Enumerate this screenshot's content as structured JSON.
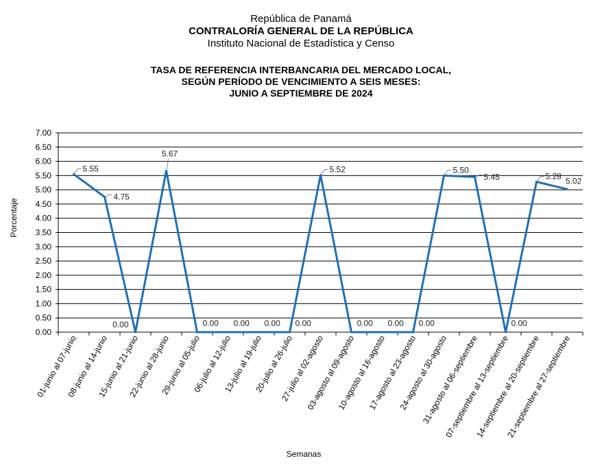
{
  "header": {
    "line1": "República de Panamá",
    "line2": "CONTRALORÍA GENERAL DE LA REPÚBLICA",
    "line3": "Instituto  Nacional de Estadística y Censo"
  },
  "chart_data": {
    "type": "line",
    "title": [
      "TASA DE REFERENCIA INTERBANCARIA DEL MERCADO LOCAL,",
      "SEGÚN PERÍODO DE VENCIMIENTO A SEIS MESES:",
      "JUNIO A SEPTIEMBRE DE 2024"
    ],
    "xlabel": "Semanas",
    "ylabel": "Porcentaje",
    "ylim": [
      0,
      7
    ],
    "ytick_step": 0.5,
    "grid": true,
    "categories": [
      "01-junio al 07-junio",
      "08-junio al 14-junio",
      "15-junio al 21-junio",
      "22-junio al 28-junio",
      "29-junio al 05-julio",
      "06-julio al 12-julio",
      "13-julio al 19-julio",
      "20-julio al 26-julio",
      "27-julio al 02-agosto",
      "03-agosto al 09-agosto",
      "10-agosto al 16-agosto",
      "17-agosto al 23-agosto",
      "24-agosto al 30-agosto",
      "31-agosto al 06-septiembre",
      "07-septiembre al 13-septiembre",
      "14-septiembre al 20-septiembre",
      "21-septiembre al 27-septiembre"
    ],
    "values": [
      5.55,
      4.75,
      0.0,
      5.67,
      0.0,
      0.0,
      0.0,
      0.0,
      5.52,
      0.0,
      0.0,
      0.0,
      5.5,
      5.45,
      0.0,
      5.28,
      5.02
    ],
    "labels": [
      "5.55",
      "4.75",
      "0.00",
      "5.67",
      "0.00",
      "0.00",
      "0.00",
      "0.00",
      "5.52",
      "0.00",
      "0.00",
      "0.00",
      "5.50",
      "5.45",
      "0.00",
      "5.28",
      "5.02"
    ],
    "line_color": "#1f6fb5",
    "grid_color": "#000000"
  }
}
